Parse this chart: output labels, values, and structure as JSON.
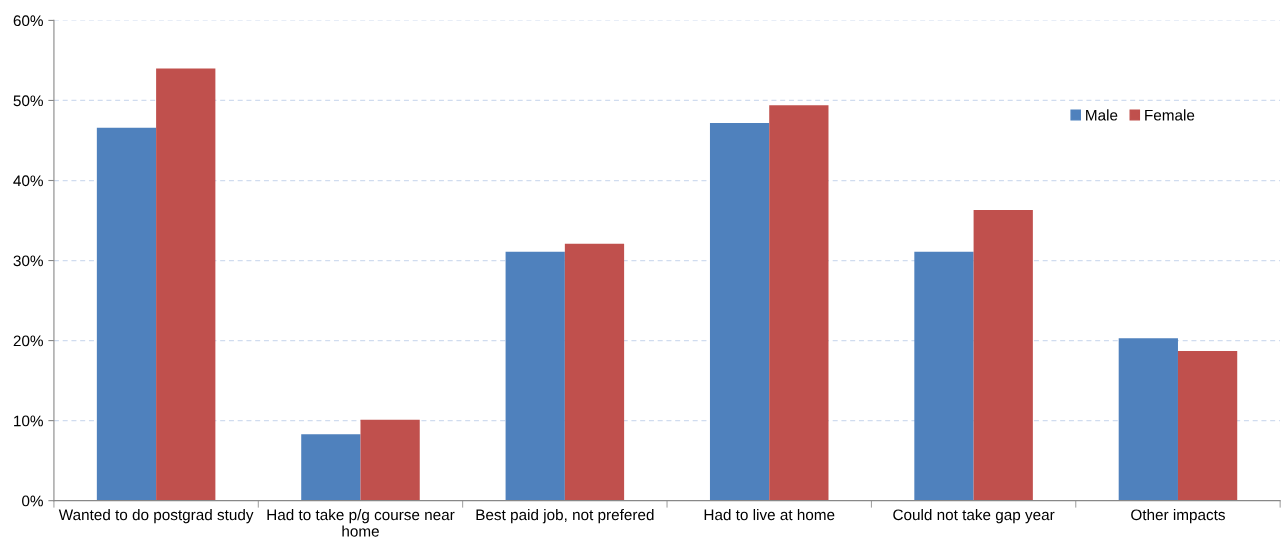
{
  "chart_data": {
    "type": "bar",
    "categories": [
      "Wanted to do postgrad study",
      "Had to take p/g course near\nhome",
      "Best paid job, not prefered",
      "Had to live at home",
      "Could not take gap year",
      "Other impacts"
    ],
    "series": [
      {
        "name": "Male",
        "color": "#4f81bd",
        "values": [
          46.6,
          8.3,
          31.1,
          47.2,
          31.1,
          20.3
        ]
      },
      {
        "name": "Female",
        "color": "#c0504d",
        "values": [
          54.0,
          10.1,
          32.1,
          49.4,
          36.3,
          18.7
        ]
      }
    ],
    "ylim": [
      0,
      60
    ],
    "yticks": [
      {
        "value": 0,
        "label": "0%"
      },
      {
        "value": 10,
        "label": "10%"
      },
      {
        "value": 20,
        "label": "20%"
      },
      {
        "value": 30,
        "label": "30%"
      },
      {
        "value": 40,
        "label": "40%"
      },
      {
        "value": 50,
        "label": "50%"
      },
      {
        "value": 60,
        "label": "60%"
      }
    ],
    "grid": "y",
    "legend": "top right"
  }
}
